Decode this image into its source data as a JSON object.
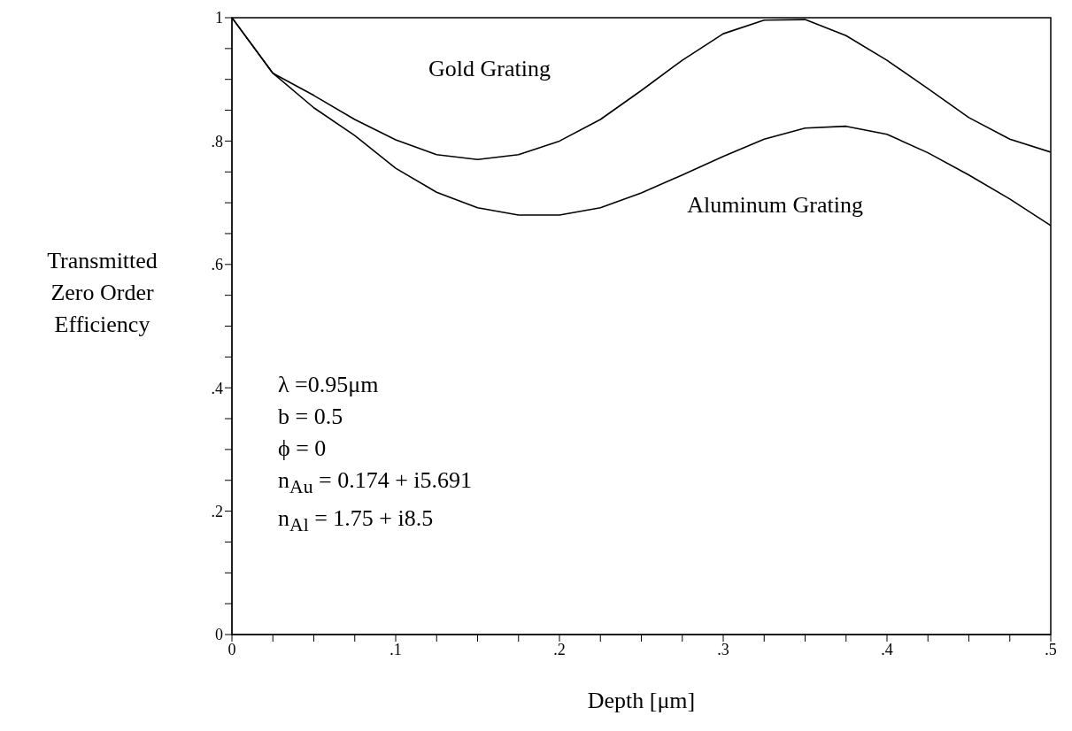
{
  "chart_data": {
    "type": "line",
    "xlabel": "Depth [μm]",
    "ylabel": "Transmitted Zero Order Efficiency",
    "x": [
      0,
      0.025,
      0.05,
      0.075,
      0.1,
      0.125,
      0.15,
      0.175,
      0.2,
      0.225,
      0.25,
      0.275,
      0.3,
      0.325,
      0.35,
      0.375,
      0.4,
      0.425,
      0.45,
      0.475,
      0.5
    ],
    "series": [
      {
        "name": "Gold Grating",
        "color": "#000000",
        "values": [
          1.0,
          0.91,
          0.874,
          0.835,
          0.802,
          0.778,
          0.77,
          0.778,
          0.8,
          0.835,
          0.882,
          0.931,
          0.974,
          0.996,
          0.997,
          0.971,
          0.931,
          0.885,
          0.838,
          0.803,
          0.782
        ]
      },
      {
        "name": "Aluminum Grating",
        "color": "#000000",
        "values": [
          1.0,
          0.91,
          0.854,
          0.809,
          0.756,
          0.717,
          0.692,
          0.68,
          0.68,
          0.692,
          0.716,
          0.745,
          0.775,
          0.803,
          0.821,
          0.824,
          0.811,
          0.781,
          0.745,
          0.706,
          0.663
        ]
      }
    ],
    "xlim": [
      0,
      0.5
    ],
    "xticks": [
      {
        "value": 0,
        "label": "0"
      },
      {
        "value": 0.025,
        "label": null
      },
      {
        "value": 0.05,
        "label": null
      },
      {
        "value": 0.075,
        "label": null
      },
      {
        "value": 0.1,
        "label": ".1"
      },
      {
        "value": 0.125,
        "label": null
      },
      {
        "value": 0.15,
        "label": null
      },
      {
        "value": 0.175,
        "label": null
      },
      {
        "value": 0.2,
        "label": ".2"
      },
      {
        "value": 0.225,
        "label": null
      },
      {
        "value": 0.25,
        "label": null
      },
      {
        "value": 0.275,
        "label": null
      },
      {
        "value": 0.3,
        "label": ".3"
      },
      {
        "value": 0.325,
        "label": null
      },
      {
        "value": 0.35,
        "label": null
      },
      {
        "value": 0.375,
        "label": null
      },
      {
        "value": 0.4,
        "label": ".4"
      },
      {
        "value": 0.425,
        "label": null
      },
      {
        "value": 0.45,
        "label": null
      },
      {
        "value": 0.475,
        "label": null
      },
      {
        "value": 0.5,
        "label": ".5"
      }
    ],
    "ylim": [
      0,
      1
    ],
    "yticks": [
      {
        "value": 0,
        "label": "0"
      },
      {
        "value": 0.05,
        "label": null
      },
      {
        "value": 0.1,
        "label": null
      },
      {
        "value": 0.15,
        "label": null
      },
      {
        "value": 0.2,
        "label": ".2"
      },
      {
        "value": 0.25,
        "label": null
      },
      {
        "value": 0.3,
        "label": null
      },
      {
        "value": 0.35,
        "label": null
      },
      {
        "value": 0.4,
        "label": ".4"
      },
      {
        "value": 0.45,
        "label": null
      },
      {
        "value": 0.5,
        "label": null
      },
      {
        "value": 0.55,
        "label": null
      },
      {
        "value": 0.6,
        "label": ".6"
      },
      {
        "value": 0.65,
        "label": null
      },
      {
        "value": 0.7,
        "label": null
      },
      {
        "value": 0.75,
        "label": null
      },
      {
        "value": 0.8,
        "label": ".8"
      },
      {
        "value": 0.85,
        "label": null
      },
      {
        "value": 0.9,
        "label": null
      },
      {
        "value": 0.95,
        "label": null
      },
      {
        "value": 1,
        "label": "1"
      }
    ],
    "annotations": [
      "λ =0.95μm",
      "b = 0.5",
      "ϕ = 0",
      "n$_{Au}$ = 0.174 + i5.691",
      "n$_{Al}$ = 1.75 + i8.5"
    ],
    "grid": false,
    "legend": false,
    "marker": "none",
    "line_style": "solid"
  }
}
